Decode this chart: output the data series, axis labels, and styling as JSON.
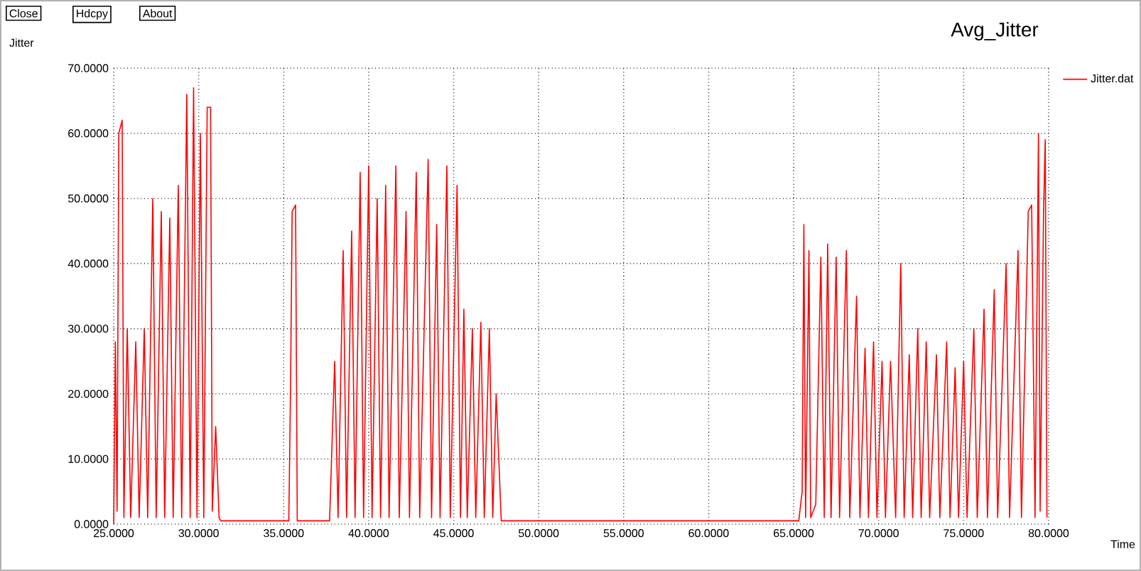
{
  "chart_data": {
    "type": "line",
    "title": "Avg_Jitter",
    "xlabel": "Time",
    "ylabel": "Jitter",
    "annotations": [
      "Close",
      "Hdcpy",
      "About"
    ],
    "xlim": [
      25,
      80
    ],
    "ylim": [
      0,
      70
    ],
    "xticks": [
      {
        "value": 25,
        "label": "25.0000"
      },
      {
        "value": 30,
        "label": "30.0000"
      },
      {
        "value": 35,
        "label": "35.0000"
      },
      {
        "value": 40,
        "label": "40.0000"
      },
      {
        "value": 45,
        "label": "45.0000"
      },
      {
        "value": 50,
        "label": "50.0000"
      },
      {
        "value": 55,
        "label": "55.0000"
      },
      {
        "value": 60,
        "label": "60.0000"
      },
      {
        "value": 65,
        "label": "65.0000"
      },
      {
        "value": 70,
        "label": "70.0000"
      },
      {
        "value": 75,
        "label": "75.0000"
      },
      {
        "value": 80,
        "label": "80.0000"
      }
    ],
    "yticks": [
      {
        "value": 0,
        "label": "0.0000"
      },
      {
        "value": 10,
        "label": "10.0000"
      },
      {
        "value": 20,
        "label": "20.0000"
      },
      {
        "value": 30,
        "label": "30.0000"
      },
      {
        "value": 40,
        "label": "40.0000"
      },
      {
        "value": 50,
        "label": "50.0000"
      },
      {
        "value": 60,
        "label": "60.0000"
      },
      {
        "value": 70,
        "label": "70.0000"
      }
    ],
    "grid": true,
    "legend": "top right",
    "marker": "none",
    "line_style": "solid",
    "series": [
      {
        "name": "Jitter.dat",
        "color": "#ff0000",
        "x": [
          25.0,
          25.1,
          25.2,
          25.3,
          25.5,
          25.6,
          25.8,
          26.0,
          26.3,
          26.5,
          26.8,
          27.0,
          27.3,
          27.5,
          27.8,
          28.0,
          28.3,
          28.5,
          28.8,
          29.0,
          29.3,
          29.5,
          29.7,
          29.9,
          30.1,
          30.3,
          30.5,
          30.7,
          30.8,
          31.0,
          31.2,
          31.3,
          35.3,
          35.4,
          35.5,
          35.7,
          35.8,
          37.7,
          38.0,
          38.2,
          38.5,
          38.7,
          39.0,
          39.2,
          39.5,
          39.7,
          40.0,
          40.2,
          40.5,
          40.7,
          41.0,
          41.2,
          41.6,
          41.8,
          42.2,
          42.4,
          42.8,
          43.0,
          43.5,
          43.7,
          44.0,
          44.2,
          44.6,
          44.8,
          45.2,
          45.4,
          45.6,
          45.8,
          46.1,
          46.3,
          46.6,
          46.8,
          47.1,
          47.3,
          47.5,
          47.8,
          65.3,
          65.5,
          65.6,
          65.7,
          65.9,
          66.0,
          66.3,
          66.6,
          66.8,
          67.0,
          67.2,
          67.5,
          67.7,
          68.1,
          68.3,
          68.7,
          68.9,
          69.2,
          69.4,
          69.7,
          69.9,
          70.2,
          70.4,
          70.7,
          71.0,
          71.3,
          71.5,
          71.8,
          72.0,
          72.3,
          72.5,
          72.8,
          73.0,
          73.4,
          73.6,
          74.0,
          74.2,
          74.5,
          74.7,
          75.0,
          75.2,
          75.6,
          75.8,
          76.2,
          76.4,
          76.8,
          77.0,
          77.5,
          77.7,
          78.2,
          78.4,
          78.8,
          79.0,
          79.2,
          79.4,
          79.5,
          79.7,
          79.8,
          79.9
        ],
        "values": [
          0,
          28,
          2,
          60,
          62,
          1,
          30,
          1,
          28,
          1,
          30,
          1,
          50,
          1,
          48,
          1,
          47,
          1,
          52,
          1,
          66,
          1,
          67,
          1,
          60,
          1,
          64,
          64,
          2,
          15,
          1,
          0.5,
          0.5,
          20,
          48,
          49,
          0.5,
          0.5,
          25,
          1,
          42,
          1,
          45,
          1,
          54,
          1,
          55,
          1,
          50,
          1,
          52,
          1,
          55,
          1,
          48,
          1,
          54,
          1,
          56,
          1,
          46,
          1,
          55,
          1,
          52,
          1,
          33,
          1,
          30,
          1,
          31,
          1,
          30,
          1,
          20,
          0.5,
          0.5,
          5,
          46,
          1,
          42,
          1,
          3,
          41,
          1,
          43,
          1,
          41,
          1,
          42,
          1,
          35,
          1,
          27,
          1,
          28,
          1,
          25,
          1,
          25,
          1,
          40,
          1,
          26,
          1,
          30,
          1,
          28,
          1,
          26,
          1,
          28,
          1,
          24,
          1,
          25,
          1,
          30,
          1,
          33,
          1,
          36,
          1,
          40,
          1,
          42,
          1,
          48,
          49,
          1,
          60,
          2,
          48,
          59,
          1
        ]
      }
    ]
  }
}
